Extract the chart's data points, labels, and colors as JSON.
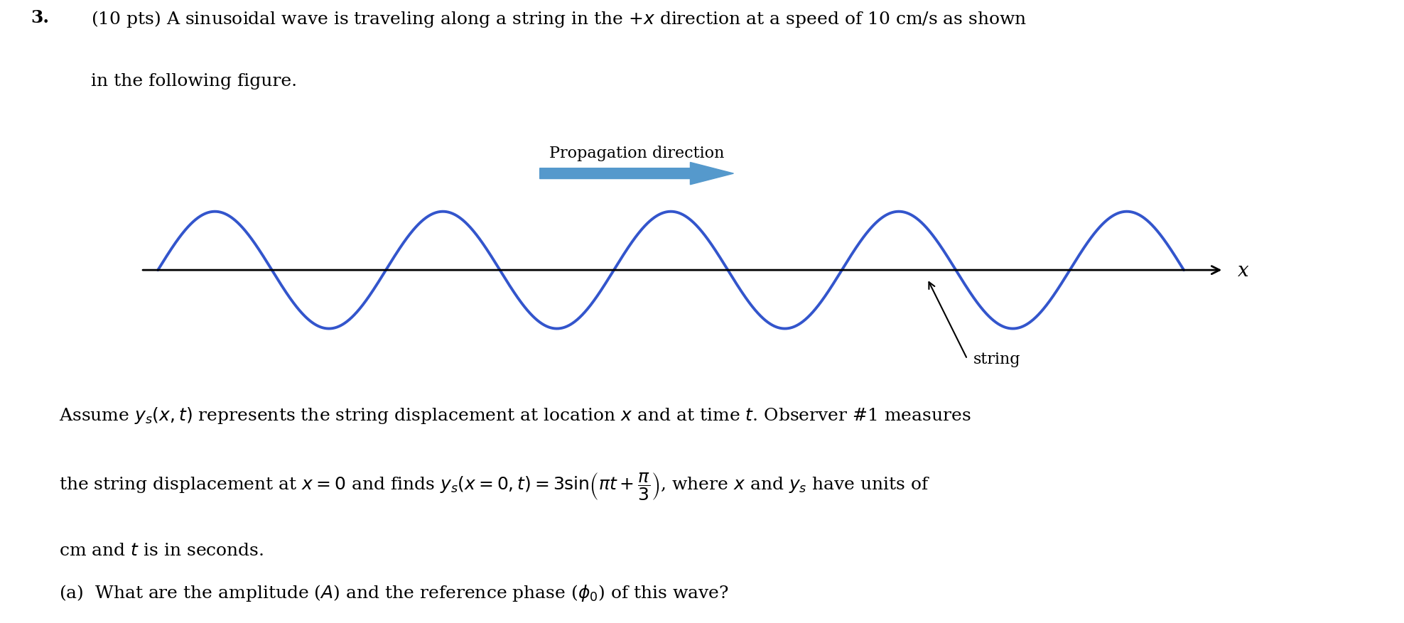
{
  "background_color": "#ffffff",
  "fig_width": 19.76,
  "fig_height": 8.78,
  "wave_color": "#3355cc",
  "wave_linewidth": 2.8,
  "axis_color": "#000000",
  "arrow_color": "#5599cc",
  "text_color": "#000000",
  "title_number": "3.",
  "line1": "(10 pts) A sinusoidal wave is traveling along a string in the $+x$ direction at a speed of 10 cm/s as shown",
  "line2": "in the following figure.",
  "prop_label": "Propagation direction",
  "x_label": "x",
  "string_label": "string",
  "body_line1": "Assume $y_s(x, t)$ represents the string displacement at location $x$ and at time $t$. Observer #1 measures",
  "body_line2": "the string displacement at $x = 0$ and finds $y_s(x = 0, t) = 3\\sin\\!\\left(\\pi t + \\dfrac{\\pi}{3}\\right)$, where $x$ and $y_s$ have units of",
  "body_line3": "cm and $t$ is in seconds.",
  "question_a": "(a)  What are the amplitude ($A$) and the reference phase ($\\phi_0$) of this wave?",
  "font_size_header": 18,
  "font_size_body": 18,
  "wave_xstart": 0.0,
  "wave_xend": 9.0,
  "wave_amplitude": 1.0,
  "wave_wavelength": 2.0
}
